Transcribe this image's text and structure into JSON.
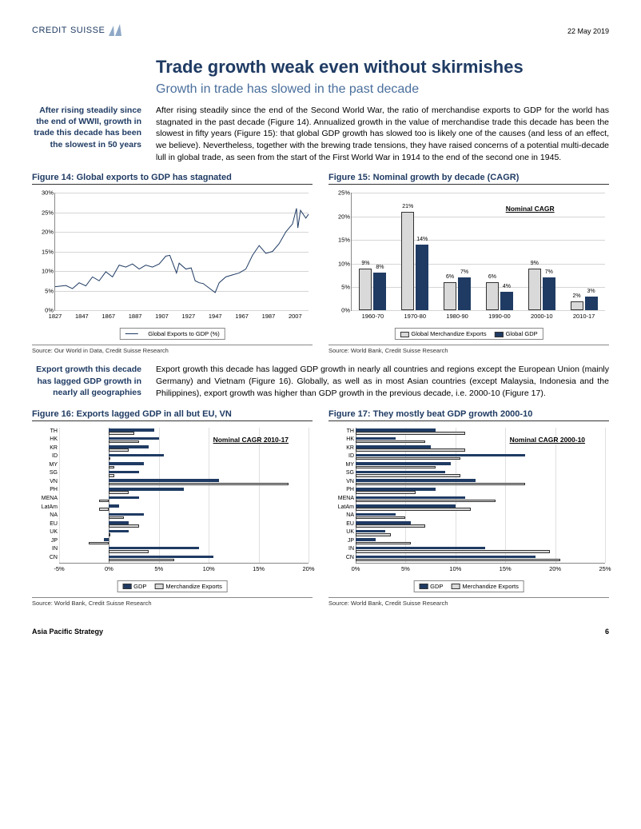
{
  "header": {
    "brand_a": "CREDIT",
    "brand_b": "SUISSE",
    "date": "22 May 2019"
  },
  "title": "Trade growth weak even without skirmishes",
  "subtitle": "Growth in trade has slowed in the past decade",
  "sidenote1": "After rising steadily since the end of WWII, growth in trade this decade has been the slowest in 50 years",
  "para1": "After rising steadily since the end of the Second World War, the ratio of merchandise exports to GDP for the world has stagnated in the past decade (Figure 14). Annualized growth in the value of merchandise trade this decade has been the slowest in fifty years (Figure 15): that global GDP growth has slowed too is likely one of the causes (and less of an effect, we believe). Nevertheless, together with the brewing trade tensions, they have raised concerns of a potential multi-decade lull in global trade, as seen from the start of the First World War in 1914 to the end of the second one in 1945.",
  "fig14": {
    "title": "Figure 14: Global exports to GDP has stagnated",
    "type": "line",
    "ylim": [
      0,
      30
    ],
    "ytick_step": 5,
    "ytick_suffix": "%",
    "xlim": [
      1827,
      2017
    ],
    "xticks": [
      1827,
      1847,
      1867,
      1887,
      1907,
      1927,
      1947,
      1967,
      1987,
      2007
    ],
    "line_color": "#1f3b63",
    "legend": "Global Exports to GDP (%)",
    "series": [
      [
        1827,
        6.0
      ],
      [
        1835,
        6.3
      ],
      [
        1840,
        5.5
      ],
      [
        1845,
        7.0
      ],
      [
        1850,
        6.2
      ],
      [
        1855,
        8.5
      ],
      [
        1860,
        7.5
      ],
      [
        1865,
        9.8
      ],
      [
        1870,
        8.5
      ],
      [
        1875,
        11.5
      ],
      [
        1880,
        11.0
      ],
      [
        1885,
        11.8
      ],
      [
        1890,
        10.5
      ],
      [
        1895,
        11.5
      ],
      [
        1900,
        11.0
      ],
      [
        1905,
        11.8
      ],
      [
        1910,
        13.8
      ],
      [
        1913,
        14.0
      ],
      [
        1918,
        9.5
      ],
      [
        1920,
        12.0
      ],
      [
        1925,
        10.5
      ],
      [
        1929,
        10.8
      ],
      [
        1932,
        7.5
      ],
      [
        1935,
        7.0
      ],
      [
        1938,
        6.8
      ],
      [
        1945,
        5.0
      ],
      [
        1947,
        4.5
      ],
      [
        1950,
        7.0
      ],
      [
        1955,
        8.5
      ],
      [
        1960,
        9.0
      ],
      [
        1965,
        9.5
      ],
      [
        1970,
        10.5
      ],
      [
        1975,
        14.0
      ],
      [
        1980,
        16.5
      ],
      [
        1985,
        14.5
      ],
      [
        1990,
        15.0
      ],
      [
        1995,
        17.0
      ],
      [
        2000,
        20.0
      ],
      [
        2005,
        22.0
      ],
      [
        2008,
        26.0
      ],
      [
        2009,
        21.0
      ],
      [
        2011,
        25.5
      ],
      [
        2015,
        23.5
      ],
      [
        2017,
        24.5
      ]
    ],
    "source": "Source: Our World in Data, Credit Suisse Research"
  },
  "fig15": {
    "title": "Figure 15: Nominal growth by decade (CAGR)",
    "type": "grouped-bar",
    "ylim": [
      0,
      25
    ],
    "ytick_step": 5,
    "ytick_suffix": "%",
    "categories": [
      "1960-70",
      "1970-80",
      "1980-90",
      "1990-00",
      "2000-10",
      "2010-17"
    ],
    "series": [
      {
        "name": "Global Merchandize Exports",
        "color": "#d9d9d9",
        "border": "#333",
        "values": [
          9,
          21,
          6,
          6,
          9,
          2
        ]
      },
      {
        "name": "Global GDP",
        "color": "#1f3b63",
        "border": "#1f3b63",
        "values": [
          8,
          14,
          7,
          4,
          7,
          3
        ]
      }
    ],
    "annotation": "Nominal CAGR",
    "source": "Source: World Bank, Credit Suisse Research"
  },
  "sidenote2": "Export growth this decade has lagged GDP growth in nearly all geographies",
  "para2": "Export growth this decade has lagged GDP growth in nearly all countries and regions except the European Union (mainly Germany) and Vietnam (Figure 16). Globally, as well as in most Asian countries (except Malaysia, Indonesia and the Philippines), export growth was higher than GDP growth in the previous decade, i.e. 2000-10 (Figure 17).",
  "fig16": {
    "title": "Figure 16: Exports lagged GDP in all but EU, VN",
    "type": "hbar",
    "xlim": [
      -5,
      20
    ],
    "xtick_step": 5,
    "xtick_suffix": "%",
    "categories": [
      "TH",
      "HK",
      "KR",
      "ID",
      "MY",
      "SG",
      "VN",
      "PH",
      "MENA",
      "LatAm",
      "NA",
      "EU",
      "UK",
      "JP",
      "IN",
      "CN"
    ],
    "series": [
      {
        "name": "GDP",
        "color": "#1f3b63",
        "values": [
          4.5,
          5.0,
          4.0,
          5.5,
          3.5,
          3.0,
          11.0,
          7.5,
          3.0,
          1.0,
          3.5,
          2.0,
          2.0,
          -0.5,
          9.0,
          10.5
        ]
      },
      {
        "name": "Merchandize Exports",
        "color": "#d9d9d9",
        "border": "#333",
        "values": [
          2.5,
          3.0,
          2.0,
          0.0,
          0.5,
          0.5,
          18.0,
          2.0,
          -1.0,
          -1.0,
          1.5,
          3.0,
          0.0,
          -2.0,
          4.0,
          6.5
        ]
      }
    ],
    "annotation": "Nominal CAGR 2010-17",
    "source": "Source: World Bank, Credit Suisse Research"
  },
  "fig17": {
    "title": "Figure 17: They mostly beat GDP growth 2000-10",
    "type": "hbar",
    "xlim": [
      0,
      25
    ],
    "xtick_step": 5,
    "xtick_suffix": "%",
    "categories": [
      "TH",
      "HK",
      "KR",
      "ID",
      "MY",
      "SG",
      "VN",
      "PH",
      "MENA",
      "LatAm",
      "NA",
      "EU",
      "UK",
      "JP",
      "IN",
      "CN"
    ],
    "series": [
      {
        "name": "GDP",
        "color": "#1f3b63",
        "values": [
          8.0,
          4.0,
          7.5,
          17.0,
          9.5,
          9.0,
          12.0,
          8.0,
          11.0,
          10.0,
          4.0,
          5.5,
          3.0,
          2.0,
          13.0,
          18.0
        ]
      },
      {
        "name": "Merchandize Exports",
        "color": "#d9d9d9",
        "border": "#333",
        "values": [
          11.0,
          7.0,
          11.0,
          10.5,
          8.0,
          10.5,
          17.0,
          6.0,
          14.0,
          11.5,
          5.0,
          7.0,
          3.5,
          5.5,
          19.5,
          20.5
        ]
      }
    ],
    "annotation": "Nominal CAGR 2000-10",
    "source": "Source: World Bank, Credit Suisse Research"
  },
  "footer": {
    "left": "Asia Pacific Strategy",
    "page": "6"
  },
  "colors": {
    "brand": "#1f3b63",
    "light_fill": "#d9d9d9",
    "grid": "#d5d5d5"
  }
}
